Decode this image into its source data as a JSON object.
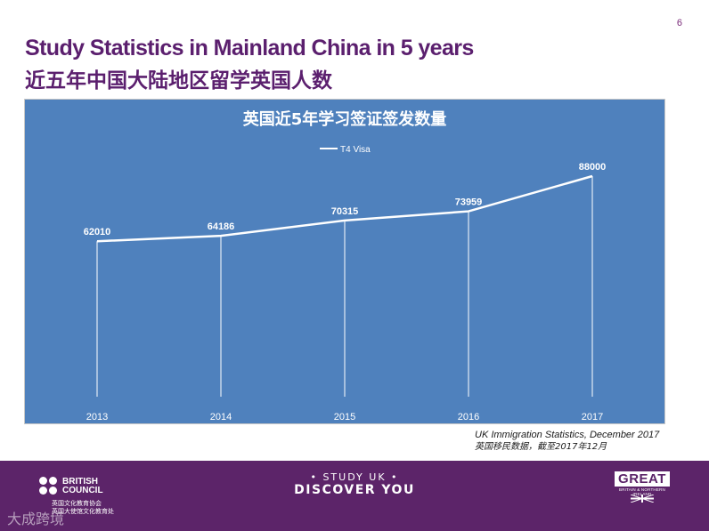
{
  "page": {
    "number": "6",
    "title_en": "Study Statistics in Mainland China in 5 years",
    "title_zh": "近五年中国大陆地区留学英国人数"
  },
  "source": {
    "line1": "UK Immigration Statistics, December 2017",
    "line2": "英国移民数据，截至2017年12月"
  },
  "footer": {
    "british_council_line1": "BRITISH",
    "british_council_line2": "COUNCIL",
    "bc_zh_line1": "英国文化教育协会",
    "bc_zh_line2": "英国大使馆文化教育处",
    "study_uk": "• STUDY UK •",
    "discover_you": "DISCOVER YOU",
    "great": "GREAT",
    "great_sub": "BRITAIN & NORTHERN IRELAND",
    "watermark": "大成跨境"
  },
  "chart_data": {
    "type": "line",
    "title": "英国近5年学习签证签发数量",
    "categories": [
      "2013",
      "2014",
      "2015",
      "2016",
      "2017"
    ],
    "series": [
      {
        "name": "T4 Visa",
        "values": [
          62010,
          64186,
          70315,
          73959,
          88000
        ]
      }
    ],
    "data_labels": [
      "62010",
      "64186",
      "70315",
      "73959",
      "88000"
    ],
    "ylim": [
      0,
      110000
    ],
    "grid": false,
    "legend_position": "top-center",
    "colors": {
      "background": "#4f81bd",
      "line": "#ffffff",
      "text": "#ffffff"
    }
  }
}
